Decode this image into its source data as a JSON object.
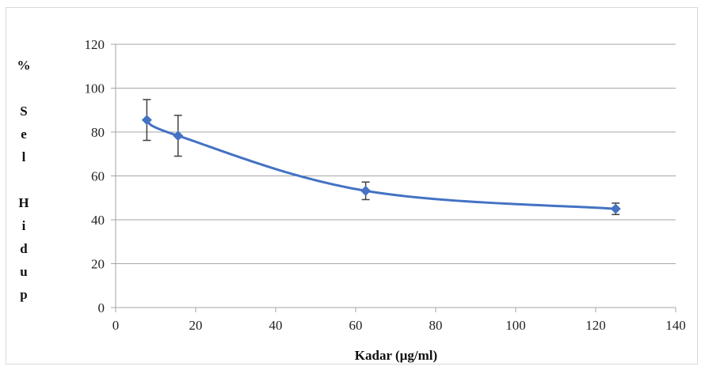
{
  "chart_data": {
    "type": "line",
    "title": "",
    "xlabel": "Kadar (µg/ml)",
    "ylabel": "% Sel Hidup",
    "xlim": [
      0,
      140
    ],
    "ylim": [
      0,
      120
    ],
    "x_ticks": [
      0,
      20,
      40,
      60,
      80,
      100,
      120,
      140
    ],
    "y_ticks": [
      0,
      20,
      40,
      60,
      80,
      100,
      120
    ],
    "grid": "horizontal",
    "legend": "none",
    "smooth": true,
    "series": [
      {
        "x": [
          7.8,
          15.6,
          62.5,
          125
        ],
        "y": [
          85.5,
          78.3,
          53.2,
          45.0
        ],
        "error": [
          9.3,
          9.3,
          4.0,
          2.6
        ]
      }
    ],
    "colors": {
      "line": "#4472c4",
      "marker": "#4472c4",
      "grid": "#a6a6a6",
      "axis": "#a6a6a6",
      "errorbar": "#404040"
    }
  }
}
